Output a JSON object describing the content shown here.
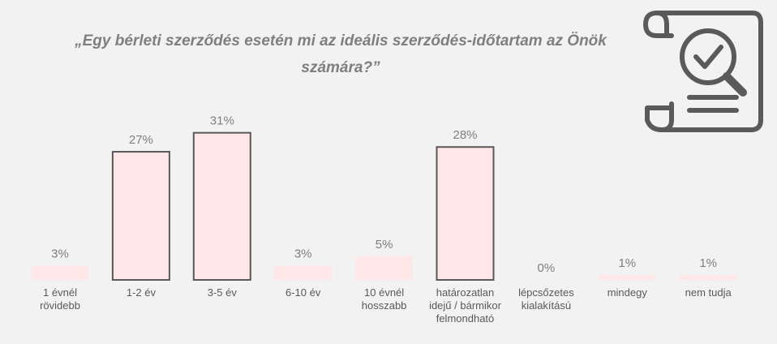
{
  "chart_data": {
    "type": "bar",
    "title": "„Egy bérleti szerződés esetén mi az ideális szerződés-időtartam az Önök számára?”",
    "categories": [
      [
        "1 évnél",
        "rövidebb"
      ],
      [
        "1-2 év"
      ],
      [
        "3-5 év"
      ],
      [
        "6-10 év"
      ],
      [
        "10 évnél",
        "hosszabb"
      ],
      [
        "határozatlan",
        "idejű / bármikor",
        "felmondható"
      ],
      [
        "lépcsőzetes",
        "kialakítású"
      ],
      [
        "mindegy"
      ],
      [
        "nem tudja"
      ]
    ],
    "values": [
      3,
      27,
      31,
      3,
      5,
      28,
      0,
      1,
      1
    ],
    "data_labels": [
      "3%",
      "27%",
      "31%",
      "3%",
      "5%",
      "28%",
      "0%",
      "1%",
      "1%"
    ],
    "unit": "%",
    "grid": false,
    "legend": "none",
    "colors": {
      "bar_fill": "#ffe7e7",
      "highlight_stroke": "#595959",
      "label_text": "#595959",
      "value_text": "#7f7f7f",
      "title_text": "#7f7f7f"
    },
    "highlighted": [
      1,
      2,
      5
    ]
  },
  "decor": {
    "icon": "document-checklist-magnifier-icon"
  }
}
